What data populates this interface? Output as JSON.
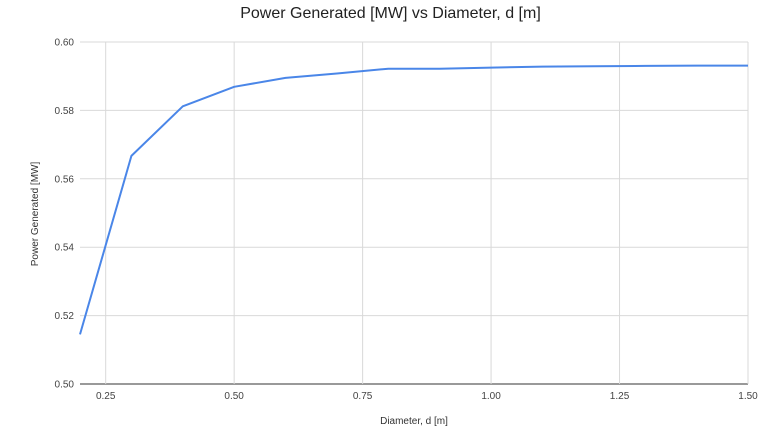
{
  "chart_data": {
    "type": "line",
    "title": "Power Generated [MW] vs Diameter, d [m]",
    "xlabel": "Diameter, d [m]",
    "ylabel": "Power Generated [MW]",
    "xlim": [
      0.2,
      1.5
    ],
    "ylim": [
      0.5,
      0.6
    ],
    "x_ticks": [
      "0.25",
      "0.50",
      "0.75",
      "1.00",
      "1.25",
      "1.50"
    ],
    "y_ticks": [
      "0.50",
      "0.52",
      "0.54",
      "0.56",
      "0.58",
      "0.60"
    ],
    "grid": true,
    "line_color": "#4a86e8",
    "series": [
      {
        "x": [
          0.2,
          0.3,
          0.4,
          0.5,
          0.6,
          0.7,
          0.8,
          0.9,
          1.0,
          1.1,
          1.2,
          1.3,
          1.4,
          1.5
        ],
        "y": [
          0.5145,
          0.5667,
          0.5812,
          0.5869,
          0.5895,
          0.5908,
          0.5922,
          0.5922,
          0.5925,
          0.5928,
          0.5929,
          0.593,
          0.5931,
          0.5931
        ]
      }
    ]
  }
}
